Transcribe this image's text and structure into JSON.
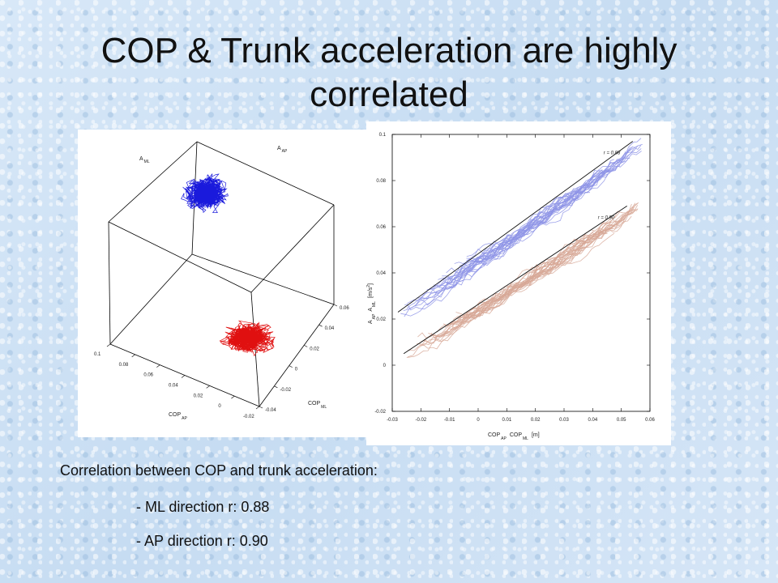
{
  "slide": {
    "title_line1": "COP & Trunk acceleration are highly",
    "title_line2": "correlated",
    "summary_heading": "Correlation between COP and trunk acceleration:",
    "items": [
      "- ML direction r: 0.88",
      "- AP direction r: 0.90"
    ]
  },
  "colors": {
    "ml_series": "#1a1adc",
    "ap_series": "#e01010",
    "ml_scatter": "#8e94e6",
    "ap_scatter": "#d7a896"
  },
  "chart_data": [
    {
      "type": "scatter",
      "view": "3d",
      "axes": {
        "cop_ap": {
          "label": "COP",
          "sub": "AP",
          "ticks": [
            "0.1",
            "0.08",
            "0.06",
            "0.04",
            "0.02",
            "0",
            "-0.02"
          ]
        },
        "cop_ml": {
          "label": "COP",
          "sub": "ML",
          "ticks": [
            "-0.04",
            "-0.02",
            "0",
            "0.02",
            "0.04",
            "0.06"
          ]
        },
        "a_ml": {
          "label": "A",
          "sub": "ML"
        },
        "a_ap": {
          "label": "A",
          "sub": "AP"
        }
      },
      "series": [
        {
          "color": "#1a1adc",
          "center": [
            0.02,
            0.06
          ],
          "spread": [
            0.012,
            0.012
          ]
        },
        {
          "color": "#e01010",
          "center": [
            0.02,
            0.03
          ],
          "spread": [
            0.015,
            0.01
          ]
        }
      ]
    },
    {
      "type": "scatter",
      "xlim": [
        -0.03,
        0.06
      ],
      "ylim": [
        -0.02,
        0.1
      ],
      "xticks": [
        "-0.03",
        "-0.02",
        "-0.01",
        "0",
        "0.01",
        "0.02",
        "0.03",
        "0.04",
        "0.05",
        "0.06"
      ],
      "yticks": [
        "-0.02",
        "0",
        "0.02",
        "0.04",
        "0.06",
        "0.08",
        "0.1"
      ],
      "xlabel": {
        "a": "COP",
        "a_sub": "AP",
        "b": "COP",
        "b_sub": "ML",
        "unit": "[m]"
      },
      "ylabel": {
        "a": "A",
        "a_sub": "AP",
        "b": "A",
        "b_sub": "ML",
        "unit": "[m/s",
        "unit_sup": "2",
        "unit_close": "]"
      },
      "series": [
        {
          "color": "#8e94e6",
          "annotation": "r = 0.88",
          "fit": [
            [
              -0.028,
              0.023
            ],
            [
              0.054,
              0.097
            ]
          ]
        },
        {
          "color": "#d7a896",
          "annotation": "r = 0.90",
          "fit": [
            [
              -0.026,
              0.005
            ],
            [
              0.052,
              0.069
            ]
          ]
        }
      ]
    }
  ]
}
